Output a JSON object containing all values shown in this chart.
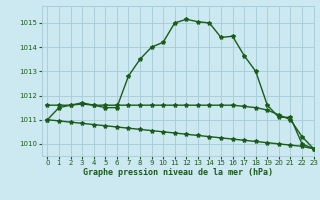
{
  "title": "Graphe pression niveau de la mer (hPa)",
  "background_color": "#cce8f0",
  "grid_color": "#aacfda",
  "line_color": "#1a5c1a",
  "xlim": [
    -0.5,
    23
  ],
  "ylim": [
    1009.5,
    1015.7
  ],
  "yticks": [
    1010,
    1011,
    1012,
    1013,
    1014,
    1015
  ],
  "xticks": [
    0,
    1,
    2,
    3,
    4,
    5,
    6,
    7,
    8,
    9,
    10,
    11,
    12,
    13,
    14,
    15,
    16,
    17,
    18,
    19,
    20,
    21,
    22,
    23
  ],
  "series1": [
    1011.0,
    1011.5,
    1011.6,
    1011.7,
    1011.6,
    1011.5,
    1011.5,
    1012.8,
    1013.5,
    1014.0,
    1014.2,
    1015.0,
    1015.15,
    1015.05,
    1015.0,
    1014.4,
    1014.45,
    1013.65,
    1013.0,
    1011.6,
    1011.1,
    1011.1,
    1010.0,
    1009.8
  ],
  "series2": [
    1011.6,
    1011.6,
    1011.6,
    1011.65,
    1011.6,
    1011.6,
    1011.6,
    1011.6,
    1011.6,
    1011.6,
    1011.6,
    1011.6,
    1011.6,
    1011.6,
    1011.6,
    1011.6,
    1011.6,
    1011.55,
    1011.5,
    1011.4,
    1011.2,
    1011.0,
    1010.3,
    1009.8
  ],
  "series3": [
    1011.0,
    1010.95,
    1010.9,
    1010.85,
    1010.8,
    1010.75,
    1010.7,
    1010.65,
    1010.6,
    1010.55,
    1010.5,
    1010.45,
    1010.4,
    1010.35,
    1010.3,
    1010.25,
    1010.2,
    1010.15,
    1010.1,
    1010.05,
    1010.0,
    1009.95,
    1009.9,
    1009.8
  ],
  "marker": "*",
  "marker_size": 3,
  "linewidth": 1.0,
  "tick_fontsize": 5,
  "xlabel_fontsize": 6
}
